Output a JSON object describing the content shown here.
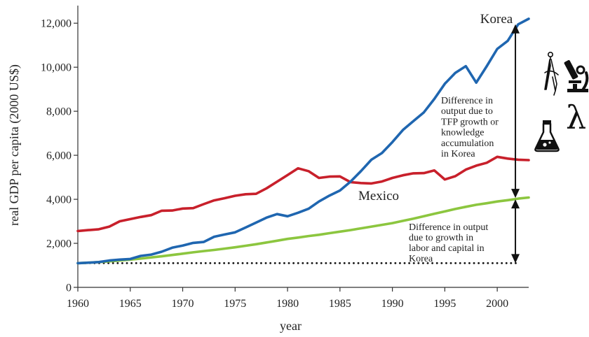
{
  "chart_data": {
    "type": "line",
    "title": "",
    "xlabel": "year",
    "ylabel": "real GDP per capita (2000 US$)",
    "xlim": [
      1960,
      2003
    ],
    "ylim": [
      0,
      12800
    ],
    "xticks": [
      1960,
      1965,
      1970,
      1975,
      1980,
      1985,
      1990,
      1995,
      2000
    ],
    "yticks": [
      0,
      2000,
      4000,
      6000,
      8000,
      10000,
      12000
    ],
    "xtick_labels": [
      "1960",
      "1965",
      "1970",
      "1975",
      "1980",
      "1985",
      "1990",
      "1995",
      "2000"
    ],
    "ytick_labels": [
      "0",
      "2,000",
      "4,000",
      "6,000",
      "8,000",
      "10,000",
      "12,000"
    ],
    "grid": false,
    "legend": "none",
    "x": [
      1960,
      1961,
      1962,
      1963,
      1964,
      1965,
      1966,
      1967,
      1968,
      1969,
      1970,
      1971,
      1972,
      1973,
      1974,
      1975,
      1976,
      1977,
      1978,
      1979,
      1980,
      1981,
      1982,
      1983,
      1984,
      1985,
      1986,
      1987,
      1988,
      1989,
      1990,
      1991,
      1992,
      1993,
      1994,
      1995,
      1996,
      1997,
      1998,
      1999,
      2000,
      2001,
      2002,
      2003
    ],
    "series": [
      {
        "name": "Korea",
        "color": "#1f66b0",
        "values": [
          1100,
          1120,
          1150,
          1220,
          1260,
          1290,
          1430,
          1490,
          1620,
          1800,
          1900,
          2020,
          2060,
          2300,
          2400,
          2500,
          2720,
          2940,
          3170,
          3330,
          3230,
          3390,
          3570,
          3900,
          4170,
          4400,
          4800,
          5280,
          5800,
          6100,
          6600,
          7150,
          7550,
          7950,
          8560,
          9250,
          9740,
          10050,
          9300,
          10050,
          10830,
          11200,
          11950,
          12200
        ]
      },
      {
        "name": "Mexico",
        "color": "#c8202b",
        "values": [
          2560,
          2600,
          2640,
          2760,
          3000,
          3100,
          3200,
          3280,
          3480,
          3490,
          3580,
          3600,
          3780,
          3950,
          4050,
          4160,
          4230,
          4250,
          4500,
          4800,
          5100,
          5410,
          5280,
          4970,
          5030,
          5040,
          4780,
          4740,
          4720,
          4810,
          4970,
          5090,
          5180,
          5190,
          5310,
          4900,
          5050,
          5350,
          5530,
          5660,
          5930,
          5850,
          5800,
          5780
        ]
      },
      {
        "color": "#8cc63f",
        "values": [
          1100,
          1120,
          1150,
          1180,
          1220,
          1260,
          1310,
          1360,
          1410,
          1470,
          1530,
          1590,
          1650,
          1700,
          1760,
          1820,
          1890,
          1960,
          2040,
          2120,
          2200,
          2260,
          2330,
          2390,
          2460,
          2530,
          2600,
          2680,
          2760,
          2840,
          2920,
          3020,
          3120,
          3230,
          3340,
          3450,
          3560,
          3660,
          3750,
          3820,
          3900,
          3960,
          4030,
          4080
        ]
      }
    ],
    "baseline": {
      "value": 1100,
      "style": "dotted"
    },
    "annotations": [
      {
        "lines": [
          "Difference in",
          "output due to",
          "TFP growth or",
          "knowledge",
          "accumulation",
          "in Korea"
        ],
        "arrow": {
          "x": 2002,
          "from": 4060,
          "to": 11950
        }
      },
      {
        "lines": [
          "Difference in output",
          "due to growth in",
          "labor and capital in",
          "Korea"
        ],
        "arrow": {
          "x": 2002,
          "from": 1100,
          "to": 4000
        }
      }
    ],
    "icons": [
      "compass-icon",
      "microscope-icon",
      "lambda-symbol",
      "flask-icon"
    ],
    "icon_text": {
      "lambda": "λ"
    }
  }
}
